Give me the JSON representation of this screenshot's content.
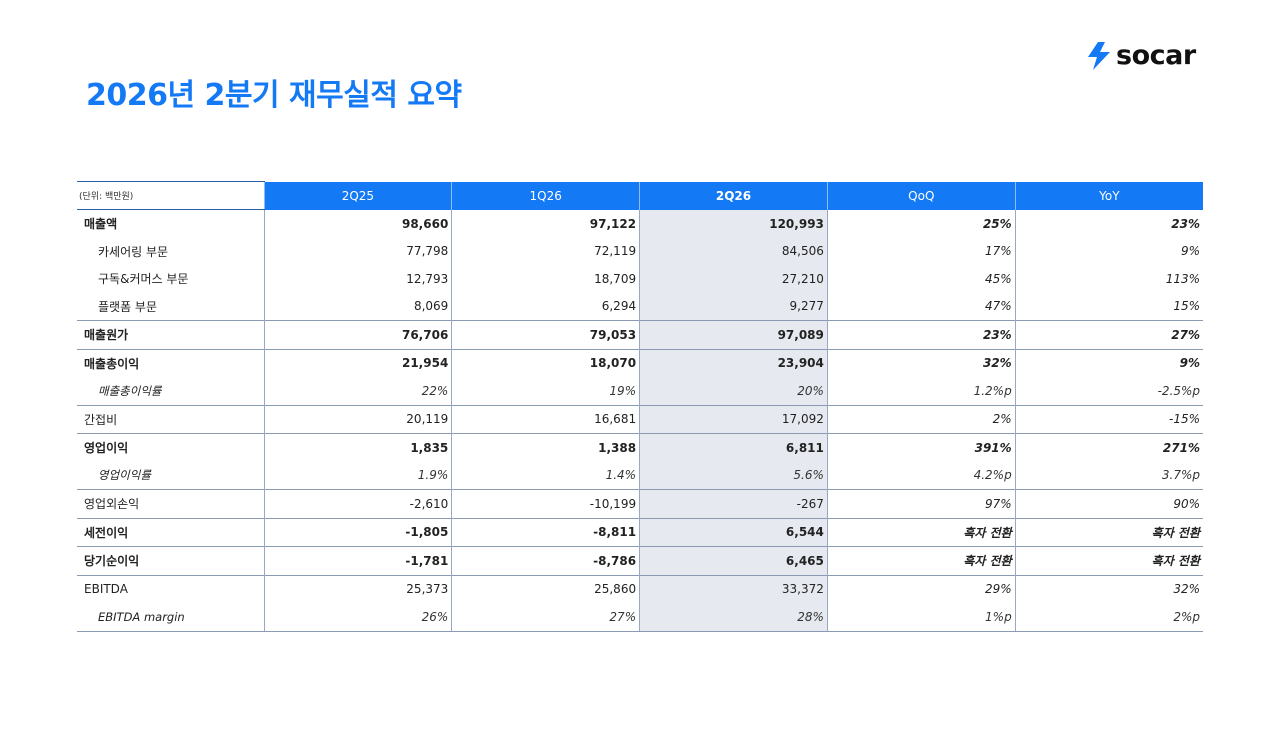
{
  "title": "2026년 2분기 재무실적 요약",
  "logo": {
    "text": "socar",
    "color": "#1479f5"
  },
  "table": {
    "unit_label": "(단위: 백만원)",
    "columns": [
      "2Q25",
      "1Q26",
      "2Q26",
      "QoQ",
      "YoY"
    ],
    "rows": [
      {
        "label": "매출액",
        "values": [
          "98,660",
          "97,122",
          "120,993",
          "25%",
          "23%"
        ]
      },
      {
        "label": "카세어링 부문",
        "values": [
          "77,798",
          "72,119",
          "84,506",
          "17%",
          "9%"
        ]
      },
      {
        "label": "구독&커머스 부문",
        "values": [
          "12,793",
          "18,709",
          "27,210",
          "45%",
          "113%"
        ]
      },
      {
        "label": "플랫폼 부문",
        "values": [
          "8,069",
          "6,294",
          "9,277",
          "47%",
          "15%"
        ]
      },
      {
        "label": "매출원가",
        "values": [
          "76,706",
          "79,053",
          "97,089",
          "23%",
          "27%"
        ]
      },
      {
        "label": "매출총이익",
        "values": [
          "21,954",
          "18,070",
          "23,904",
          "32%",
          "9%"
        ]
      },
      {
        "label": "매출총이익률",
        "values": [
          "22%",
          "19%",
          "20%",
          "1.2%p",
          "-2.5%p"
        ]
      },
      {
        "label": "간접비",
        "values": [
          "20,119",
          "16,681",
          "17,092",
          "2%",
          "-15%"
        ]
      },
      {
        "label": "영업이익",
        "values": [
          "1,835",
          "1,388",
          "6,811",
          "391%",
          "271%"
        ]
      },
      {
        "label": "영업이익률",
        "values": [
          "1.9%",
          "1.4%",
          "5.6%",
          "4.2%p",
          "3.7%p"
        ]
      },
      {
        "label": "영업외손익",
        "values": [
          "-2,610",
          "-10,199",
          "-267",
          "97%",
          "90%"
        ]
      },
      {
        "label": "세전이익",
        "values": [
          "-1,805",
          "-8,811",
          "6,544",
          "흑자 전환",
          "흑자 전환"
        ]
      },
      {
        "label": "당기순이익",
        "values": [
          "-1,781",
          "-8,786",
          "6,465",
          "흑자 전환",
          "흑자 전환"
        ]
      },
      {
        "label": "EBITDA",
        "values": [
          "25,373",
          "25,860",
          "33,372",
          "29%",
          "32%"
        ]
      },
      {
        "label": "EBITDA margin",
        "values": [
          "26%",
          "27%",
          "28%",
          "1%p",
          "2%p"
        ]
      }
    ]
  }
}
